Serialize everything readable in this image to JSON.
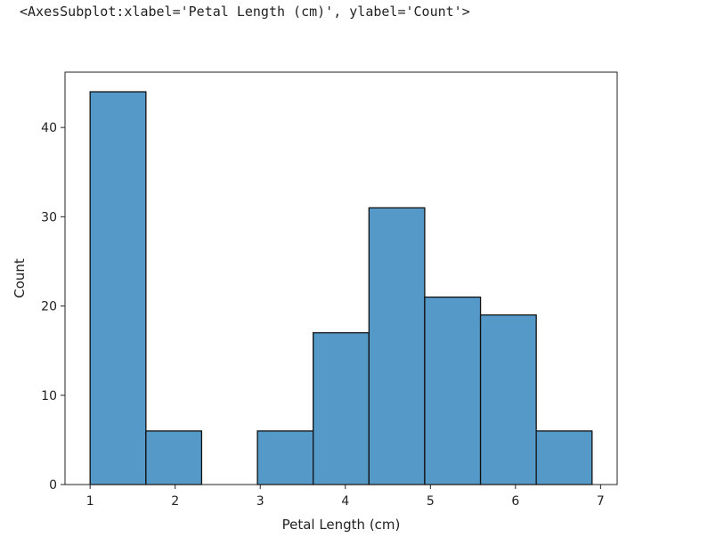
{
  "output_repr": "<AxesSubplot:xlabel='Petal Length (cm)', ylabel='Count'>",
  "chart_data": {
    "type": "bar",
    "title": "",
    "xlabel": "Petal Length (cm)",
    "ylabel": "Count",
    "xlim": [
      0.705,
      7.195
    ],
    "ylim": [
      0,
      46.2
    ],
    "xticks": [
      1,
      2,
      3,
      4,
      5,
      6,
      7
    ],
    "yticks": [
      0,
      10,
      20,
      30,
      40
    ],
    "bin_edges": [
      1.0,
      1.656,
      2.311,
      2.967,
      3.622,
      4.278,
      4.933,
      5.589,
      6.244,
      6.9
    ],
    "values": [
      44,
      6,
      0,
      6,
      17,
      31,
      21,
      19,
      6
    ],
    "bar_color": "#5499c7",
    "edge_color": "#111111",
    "grid": false
  }
}
